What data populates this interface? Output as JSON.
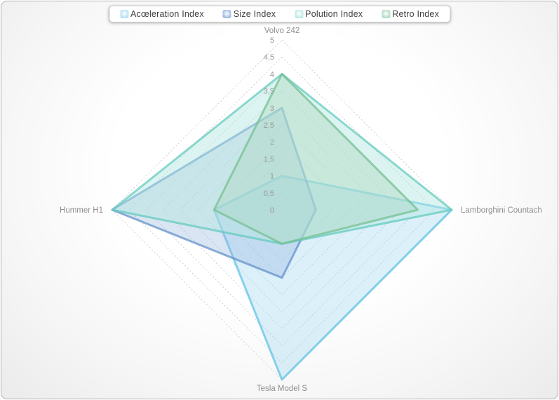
{
  "chart_data": {
    "type": "radar",
    "title": "",
    "categories": [
      "Volvo 242",
      "Lamborghini Countach",
      "Tesla Model S",
      "Hummer H1"
    ],
    "series": [
      {
        "name": "Acœleration Index",
        "values": [
          1,
          5,
          5,
          2
        ],
        "stroke": "#58c0e4",
        "fill": "rgba(164,216,242,0.38)",
        "swatch": "#a9dcf2"
      },
      {
        "name": "Size Index",
        "values": [
          3,
          1,
          2,
          5
        ],
        "stroke": "#5d8dc9",
        "fill": "rgba(148,178,221,0.34)",
        "swatch": "#95b1de"
      },
      {
        "name": "Polution Index",
        "values": [
          4,
          5,
          1,
          5
        ],
        "stroke": "#5ec9bc",
        "fill": "rgba(178,231,225,0.45)",
        "swatch": "#b5e8e2"
      },
      {
        "name": "Retro Index",
        "values": [
          4,
          4,
          1,
          2
        ],
        "stroke": "#72bd8e",
        "fill": "rgba(170,214,189,0.40)",
        "swatch": "#abd8bd"
      }
    ],
    "scale": {
      "min": 0,
      "max": 5,
      "step": 0.5,
      "tick_labels": [
        "5",
        "4,5",
        "4",
        "3,5",
        "3",
        "2,5",
        "2",
        "1,5",
        "1",
        "0,5",
        "0"
      ]
    },
    "legend_position": "top",
    "grid_style": "dashed-concentric-diamonds",
    "grid_color": "#d0d0d0",
    "label_color": "#8f8f8f"
  }
}
